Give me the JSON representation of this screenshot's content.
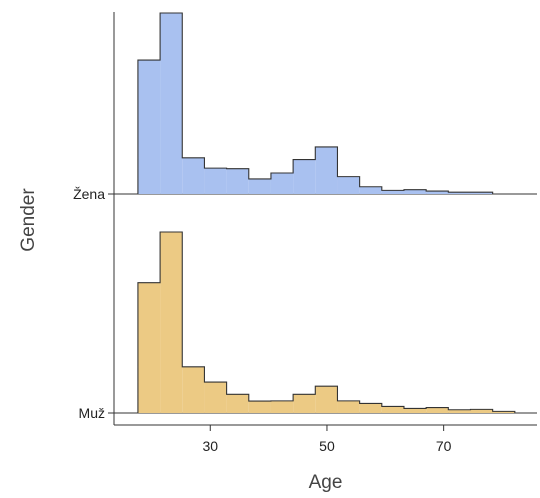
{
  "chart_data": {
    "type": "ridgeline-histogram",
    "xlabel": "Age",
    "ylabel": "Gender",
    "x_ticks": [
      30,
      50,
      70
    ],
    "xlim": [
      13.5,
      86
    ],
    "bin_width": 3.8,
    "bins_start": 17.6,
    "grid": false,
    "legend": "none",
    "series": [
      {
        "name": "Žena",
        "color": "#a9c1f0",
        "values": [
          0.74,
          1.0,
          0.2,
          0.143,
          0.14,
          0.083,
          0.116,
          0.19,
          0.26,
          0.096,
          0.04,
          0.02,
          0.024,
          0.016,
          0.01,
          0.01,
          0.0
        ]
      },
      {
        "name": "Muž",
        "color": "#ecca84",
        "values": [
          0.72,
          1.0,
          0.255,
          0.171,
          0.103,
          0.066,
          0.067,
          0.103,
          0.148,
          0.067,
          0.053,
          0.036,
          0.025,
          0.03,
          0.018,
          0.02,
          0.009
        ]
      }
    ]
  }
}
